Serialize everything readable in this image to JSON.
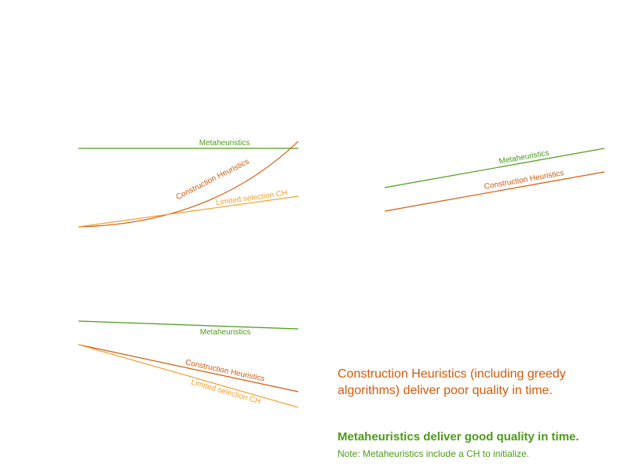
{
  "colors": {
    "metaheuristics": "#4c9a1a",
    "construction": "#d45a0a",
    "limited": "#f0a030"
  },
  "diagrams": [
    {
      "labels": {
        "metaheuristics": "Metaheuristics",
        "construction": "Construction Heuristics",
        "limited": "Limited selection CH"
      }
    },
    {
      "labels": {
        "metaheuristics": "Metaheuristics",
        "construction": "Construction Heuristics"
      }
    },
    {
      "labels": {
        "metaheuristics": "Metaheuristics",
        "construction": "Construction Heuristics",
        "limited": "Limited selection CH"
      }
    }
  ],
  "notes": {
    "construction": "Construction Heuristics (including greedy algorithms) deliver poor quality in time.",
    "metaheuristics_title": "Metaheuristics deliver good quality in time.",
    "metaheuristics_sub": "Note: Metaheuristics include a CH to initialize."
  }
}
